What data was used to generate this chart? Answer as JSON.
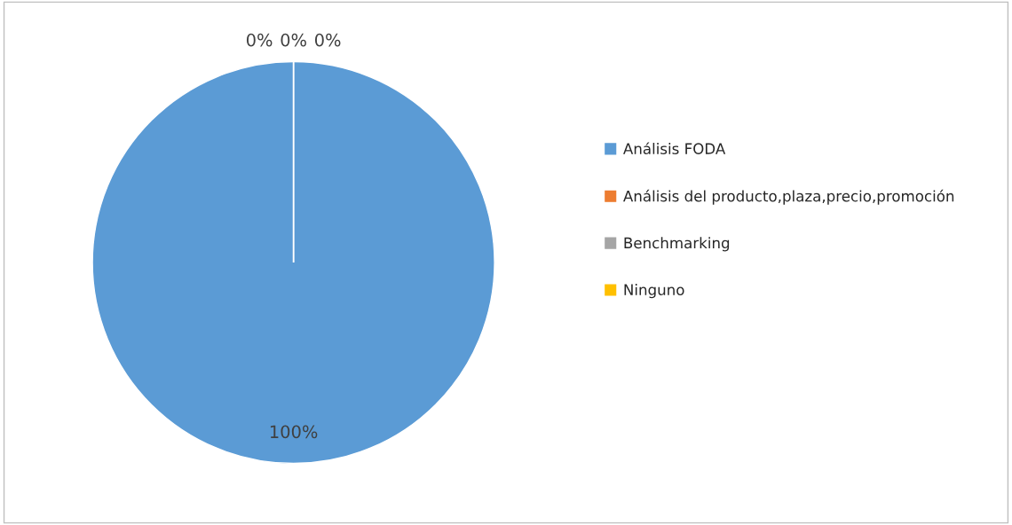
{
  "chart_data": {
    "type": "pie",
    "categories": [
      "Análisis FODA",
      "Análisis del producto,plaza,precio,promoción",
      "Benchmarking",
      "Ninguno"
    ],
    "values": [
      100,
      0,
      0,
      0
    ],
    "colors": [
      "#5b9bd5",
      "#ed7d31",
      "#a5a5a5",
      "#ffc000"
    ],
    "value_labels": [
      "100%",
      "0%",
      "0%",
      "0%"
    ],
    "legend": "right"
  }
}
